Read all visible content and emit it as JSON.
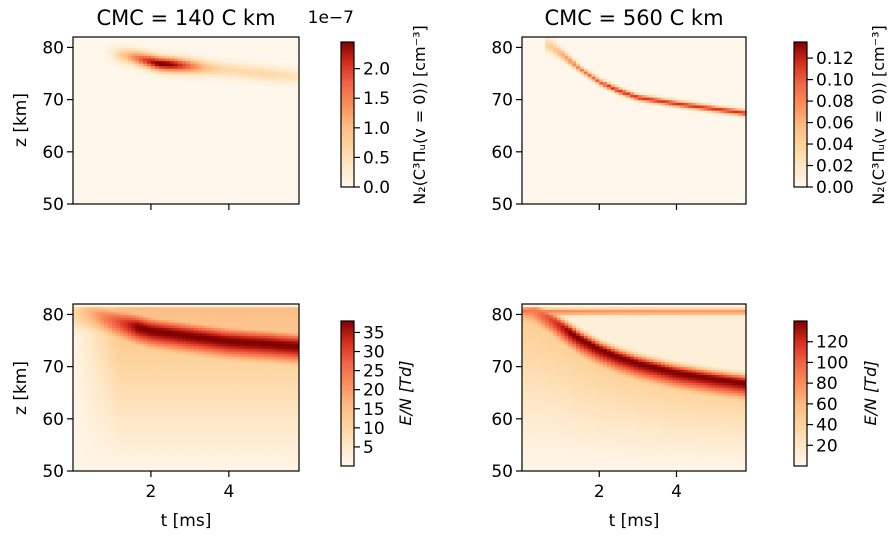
{
  "chart_data": [
    {
      "id": "p1",
      "type": "heatmap",
      "title": "CMC = 140 C km",
      "xlabel": "",
      "ylabel": "z [km]",
      "xlim": [
        0.0,
        5.8
      ],
      "ylim": [
        50,
        82
      ],
      "xticks": [
        2,
        4
      ],
      "xticklabels": [
        "",
        ""
      ],
      "yticks": [
        50,
        60,
        70,
        80
      ],
      "yticklabels": [
        "50",
        "60",
        "70",
        "80"
      ],
      "colormap": "OrRd",
      "colorbar": {
        "label": "N₂(C³Πᵤ(v = 0)) [cm⁻³]",
        "offset_text": "1e−7",
        "range": [
          0,
          2.45
        ],
        "ticks": [
          0.0,
          0.5,
          1.0,
          1.5,
          2.0
        ],
        "ticklabels": [
          "0.0",
          "0.5",
          "1.0",
          "1.5",
          "2.0"
        ]
      },
      "field": {
        "kind": "blob",
        "ridge": [
          [
            0.9,
            79.0
          ],
          [
            1.5,
            78.3
          ],
          [
            2.2,
            77.0
          ],
          [
            3.0,
            76.5
          ],
          [
            4.0,
            75.8
          ],
          [
            5.0,
            75.0
          ],
          [
            5.8,
            74.5
          ]
        ],
        "peak": [
          2.3,
          77.0,
          1.0
        ],
        "halfwidth_km": 1.4
      }
    },
    {
      "id": "p2",
      "type": "heatmap",
      "title": "CMC = 560 C km",
      "xlabel": "",
      "ylabel": "",
      "xlim": [
        0.0,
        5.8
      ],
      "ylim": [
        50,
        82
      ],
      "xticks": [
        2,
        4
      ],
      "xticklabels": [
        "",
        ""
      ],
      "yticks": [
        50,
        60,
        70,
        80
      ],
      "yticklabels": [
        "50",
        "60",
        "70",
        "80"
      ],
      "colormap": "OrRd",
      "colorbar": {
        "label": "N₂(C³Πᵤ(v = 0)) [cm⁻³]",
        "offset_text": "",
        "range": [
          0,
          0.135
        ],
        "ticks": [
          0.0,
          0.02,
          0.04,
          0.06,
          0.08,
          0.1,
          0.12
        ],
        "ticklabels": [
          "0.00",
          "0.02",
          "0.04",
          "0.06",
          "0.08",
          "0.10",
          "0.12"
        ]
      },
      "field": {
        "kind": "thin_curve",
        "ridge": [
          [
            0.7,
            80.5
          ],
          [
            1.0,
            79.0
          ],
          [
            1.5,
            76.0
          ],
          [
            2.0,
            73.5
          ],
          [
            2.5,
            71.8
          ],
          [
            3.0,
            70.5
          ],
          [
            4.0,
            69.3
          ],
          [
            5.0,
            68.3
          ],
          [
            5.8,
            67.5
          ]
        ],
        "halfwidth_km": 0.6
      }
    },
    {
      "id": "p3",
      "type": "heatmap",
      "title": "",
      "xlabel": "t [ms]",
      "ylabel": "z [km]",
      "xlim": [
        0.0,
        5.8
      ],
      "ylim": [
        50,
        82
      ],
      "xticks": [
        2,
        4
      ],
      "xticklabels": [
        "2",
        "4"
      ],
      "yticks": [
        50,
        60,
        70,
        80
      ],
      "yticklabels": [
        "50",
        "60",
        "70",
        "80"
      ],
      "colormap": "OrRd",
      "colorbar": {
        "label": "E/N [Td]",
        "offset_text": "",
        "range": [
          0,
          38
        ],
        "ticks": [
          5,
          10,
          15,
          20,
          25,
          30,
          35
        ],
        "ticklabels": [
          "5",
          "10",
          "15",
          "20",
          "25",
          "30",
          "35"
        ]
      },
      "field": {
        "kind": "band",
        "ridge": [
          [
            0.4,
            80.5
          ],
          [
            1.0,
            79.0
          ],
          [
            2.0,
            77.0
          ],
          [
            3.0,
            76.0
          ],
          [
            4.0,
            75.0
          ],
          [
            5.0,
            74.5
          ],
          [
            5.8,
            74.0
          ]
        ],
        "top_km": 81.0,
        "peak_value": 37,
        "halfwidth_km": 3.5
      }
    },
    {
      "id": "p4",
      "type": "heatmap",
      "title": "",
      "xlabel": "t [ms]",
      "ylabel": "",
      "xlim": [
        0.0,
        5.8
      ],
      "ylim": [
        50,
        82
      ],
      "xticks": [
        2,
        4
      ],
      "xticklabels": [
        "2",
        "4"
      ],
      "yticks": [
        50,
        60,
        70,
        80
      ],
      "yticklabels": [
        "50",
        "60",
        "70",
        "80"
      ],
      "colormap": "OrRd",
      "colorbar": {
        "label": "E/N [Td]",
        "offset_text": "",
        "range": [
          0,
          140
        ],
        "ticks": [
          20,
          40,
          60,
          80,
          100,
          120
        ],
        "ticklabels": [
          "20",
          "40",
          "60",
          "80",
          "100",
          "120"
        ]
      },
      "field": {
        "kind": "descending_front",
        "ridge": [
          [
            0.3,
            81.0
          ],
          [
            0.8,
            79.0
          ],
          [
            1.5,
            75.5
          ],
          [
            2.0,
            73.5
          ],
          [
            2.5,
            72.0
          ],
          [
            3.0,
            70.8
          ],
          [
            4.0,
            69.0
          ],
          [
            5.0,
            67.8
          ],
          [
            5.8,
            67.0
          ]
        ],
        "top_km": 81.0,
        "peak_value": 135,
        "halfwidth_km": 2.0
      }
    }
  ]
}
